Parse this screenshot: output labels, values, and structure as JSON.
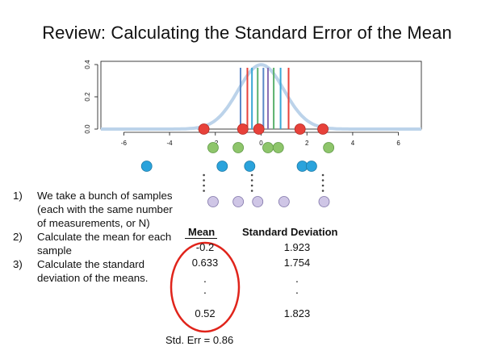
{
  "title": "Review: Calculating the Standard Error of the Mean",
  "chart_data": {
    "type": "line",
    "distribution": "normal",
    "mean": 0,
    "sd": 1,
    "xlim": [
      -7,
      7
    ],
    "ylim": [
      0,
      0.42
    ],
    "x_ticks": [
      "-6",
      "-4",
      "-2",
      "0",
      "2",
      "4",
      "6"
    ],
    "y_ticks": [
      "0.0",
      "0.2",
      "0.4"
    ],
    "vertical_lines": [
      {
        "x": -0.9,
        "color": "#5a88c8"
      },
      {
        "x": -0.6,
        "color": "#e7413a"
      },
      {
        "x": -0.4,
        "color": "#3aa7d6"
      },
      {
        "x": -0.15,
        "color": "#5ab06d"
      },
      {
        "x": 0.1,
        "color": "#5a88c8"
      },
      {
        "x": 0.3,
        "color": "#8a6fb5"
      },
      {
        "x": 0.55,
        "color": "#5ab06d"
      },
      {
        "x": 0.85,
        "color": "#3aa7d6"
      },
      {
        "x": 1.2,
        "color": "#e7413a"
      }
    ],
    "sample_rows": [
      {
        "color": "#e7413a",
        "stroke": "#b42a24",
        "xs": [
          -2.5,
          -0.8,
          -0.1,
          1.7,
          2.7
        ]
      },
      {
        "color": "#8ec56b",
        "stroke": "#5f9945",
        "xs": [
          -2.1,
          -1.0,
          0.3,
          0.75,
          2.95
        ]
      },
      {
        "color": "#2aa3dc",
        "stroke": "#1e7aa6",
        "xs": [
          -5.0,
          -1.7,
          -0.5,
          1.8,
          2.2
        ]
      },
      {
        "color": "#cfc6e6",
        "stroke": "#7f74a8",
        "xs": [
          -2.1,
          -1.0,
          -0.15,
          1.0,
          2.75
        ]
      }
    ]
  },
  "steps": [
    {
      "num": "1)",
      "text": "We take a bunch of samples (each with the same number of measurements, or N)"
    },
    {
      "num": "2)",
      "text": "Calculate the mean for each sample"
    },
    {
      "num": "3)",
      "text": "Calculate the standard deviation of the means."
    }
  ],
  "table": {
    "mean_header": "Mean",
    "sd_header": "Standard Deviation",
    "rows": [
      {
        "mean": "-0.2",
        "sd": "1.923"
      },
      {
        "mean": "0.633",
        "sd": "1.754"
      },
      {
        "mean": "0.52",
        "sd": "1.823"
      }
    ]
  },
  "std_err": "Std. Err = 0.86",
  "colors": {
    "curve": "#bcd3ea",
    "circle": "#e0241b",
    "axis": "#111111"
  }
}
